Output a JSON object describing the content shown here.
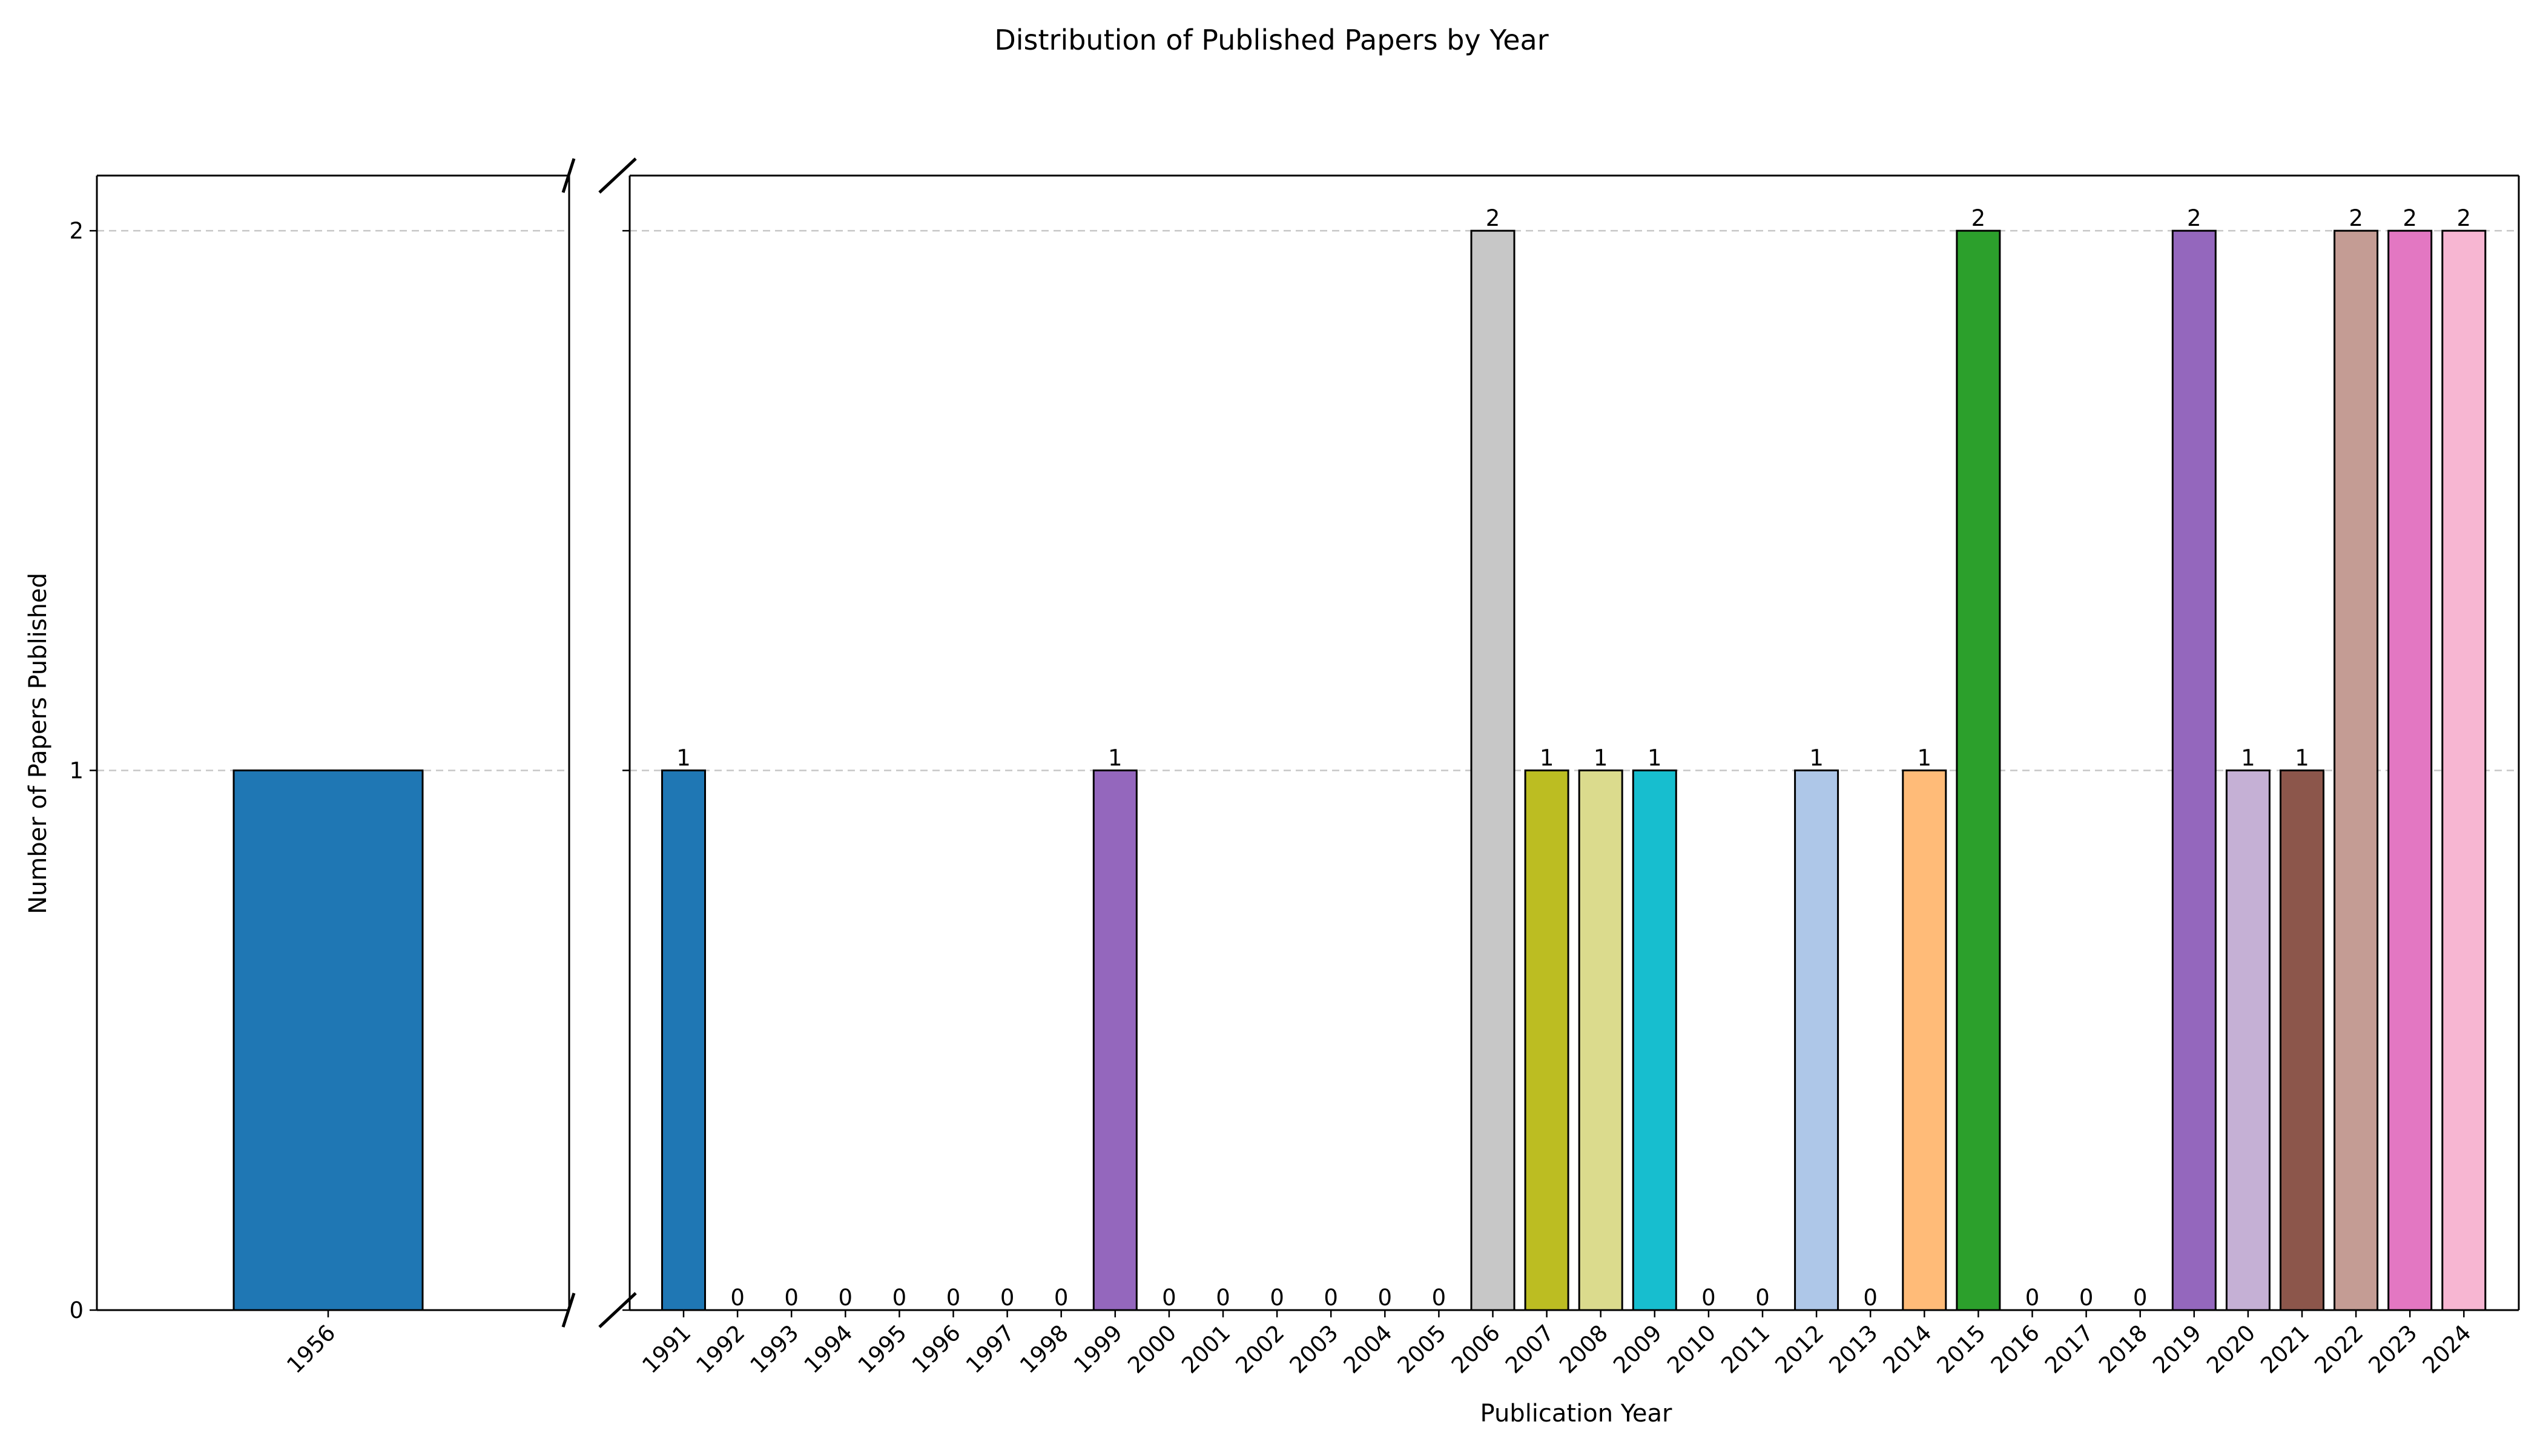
{
  "chart_data": {
    "type": "bar",
    "title": "Distribution of Published Papers by Year",
    "xlabel": "Publication Year",
    "ylabel": "Number of Papers Published",
    "ylim": [
      0,
      2.1
    ],
    "yticks": [
      "0",
      "1",
      "2"
    ],
    "broken_x_axis": true,
    "grid": "horizontal dashed",
    "left_panel": {
      "categories": [
        "1956"
      ],
      "values": [
        1
      ],
      "colors": [
        "#1f77b4"
      ]
    },
    "right_panel": {
      "categories": [
        "1991",
        "1992",
        "1993",
        "1994",
        "1995",
        "1996",
        "1997",
        "1998",
        "1999",
        "2000",
        "2001",
        "2002",
        "2003",
        "2004",
        "2005",
        "2006",
        "2007",
        "2008",
        "2009",
        "2010",
        "2011",
        "2012",
        "2013",
        "2014",
        "2015",
        "2016",
        "2017",
        "2018",
        "2019",
        "2020",
        "2021",
        "2022",
        "2023",
        "2024"
      ],
      "values": [
        1,
        0,
        0,
        0,
        0,
        0,
        0,
        0,
        1,
        0,
        0,
        0,
        0,
        0,
        0,
        2,
        1,
        1,
        1,
        0,
        0,
        1,
        0,
        1,
        2,
        0,
        0,
        0,
        2,
        1,
        1,
        2,
        2,
        2
      ],
      "value_labels": [
        "1",
        "0",
        "0",
        "0",
        "0",
        "0",
        "0",
        "0",
        "1",
        "0",
        "0",
        "0",
        "0",
        "0",
        "0",
        "2",
        "1",
        "1",
        "1",
        "0",
        "0",
        "1",
        "0",
        "1",
        "2",
        "0",
        "0",
        "0",
        "2",
        "1",
        "1",
        "2",
        "2",
        "2"
      ],
      "colors": [
        "#1f77b4",
        "#ffffff",
        "#ffffff",
        "#ffffff",
        "#ffffff",
        "#ffffff",
        "#ffffff",
        "#ffffff",
        "#9467bd",
        "#ffffff",
        "#ffffff",
        "#ffffff",
        "#ffffff",
        "#ffffff",
        "#ffffff",
        "#c7c7c7",
        "#bcbd22",
        "#dbdb8d",
        "#17becf",
        "#ffffff",
        "#ffffff",
        "#aec7e8",
        "#ffffff",
        "#ffbb78",
        "#2ca02c",
        "#ffffff",
        "#ffffff",
        "#ffffff",
        "#9467bd",
        "#c5b0d5",
        "#8c564b",
        "#c49c94",
        "#e377c2",
        "#f7b6d2"
      ]
    }
  }
}
